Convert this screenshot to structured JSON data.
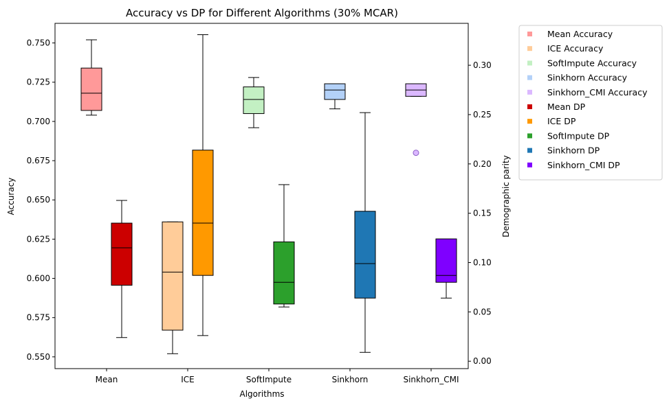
{
  "chart_data": {
    "type": "box",
    "title": "Accuracy vs DP for Different Algorithms (30% MCAR)",
    "xlabel": "Algorithms",
    "ylabel": "Accuracy",
    "y2label": "Demographic parity",
    "categories": [
      "Mean",
      "ICE",
      "SoftImpute",
      "Sinkhorn",
      "Sinkhorn_CMI"
    ],
    "ylim": [
      0.5425,
      0.7625
    ],
    "y2lim": [
      -0.0075,
      0.3425
    ],
    "yticks": [
      0.55,
      0.575,
      0.6,
      0.625,
      0.65,
      0.675,
      0.7,
      0.725,
      0.75
    ],
    "ytick_labels": [
      "0.550",
      "0.575",
      "0.600",
      "0.625",
      "0.650",
      "0.675",
      "0.700",
      "0.725",
      "0.750"
    ],
    "y2ticks": [
      0.0,
      0.05,
      0.1,
      0.15,
      0.2,
      0.25,
      0.3
    ],
    "y2tick_labels": [
      "0.00",
      "0.05",
      "0.10",
      "0.15",
      "0.20",
      "0.25",
      "0.30"
    ],
    "legend_position": "outside-right",
    "accuracy_series": [
      {
        "name": "Mean Accuracy",
        "color": "#ff9999",
        "whislo": 0.704,
        "q1": 0.707,
        "median": 0.718,
        "q3": 0.734,
        "whishi": 0.752,
        "fliers": []
      },
      {
        "name": "ICE Accuracy",
        "color": "#ffcc99",
        "whislo": 0.552,
        "q1": 0.567,
        "median": 0.604,
        "q3": 0.636,
        "whishi": 0.636,
        "fliers": []
      },
      {
        "name": "SoftImpute Accuracy",
        "color": "#c3f0c3",
        "whislo": 0.696,
        "q1": 0.705,
        "median": 0.714,
        "q3": 0.722,
        "whishi": 0.728,
        "fliers": []
      },
      {
        "name": "Sinkhorn Accuracy",
        "color": "#b3d1f8",
        "whislo": 0.708,
        "q1": 0.714,
        "median": 0.72,
        "q3": 0.724,
        "whishi": 0.724,
        "fliers": []
      },
      {
        "name": "Sinkhorn_CMI Accuracy",
        "color": "#dbb8ff",
        "whislo": 0.716,
        "q1": 0.716,
        "median": 0.72,
        "q3": 0.724,
        "whishi": 0.724,
        "fliers": [
          0.68
        ]
      }
    ],
    "dp_series": [
      {
        "name": "Mean DP",
        "color": "#cc0000",
        "whislo": 0.024,
        "q1": 0.077,
        "median": 0.115,
        "q3": 0.14,
        "whishi": 0.163,
        "fliers": []
      },
      {
        "name": "ICE DP",
        "color": "#ff9900",
        "whislo": 0.026,
        "q1": 0.087,
        "median": 0.14,
        "q3": 0.214,
        "whishi": 0.331,
        "fliers": []
      },
      {
        "name": "SoftImpute DP",
        "color": "#2ca02c",
        "whislo": 0.055,
        "q1": 0.058,
        "median": 0.08,
        "q3": 0.121,
        "whishi": 0.179,
        "fliers": []
      },
      {
        "name": "Sinkhorn DP",
        "color": "#1f77b4",
        "whislo": 0.009,
        "q1": 0.064,
        "median": 0.099,
        "q3": 0.152,
        "whishi": 0.252,
        "fliers": []
      },
      {
        "name": "Sinkhorn_CMI DP",
        "color": "#7f00ff",
        "whislo": 0.064,
        "q1": 0.08,
        "median": 0.087,
        "q3": 0.124,
        "whishi": 0.124,
        "fliers": []
      }
    ]
  }
}
